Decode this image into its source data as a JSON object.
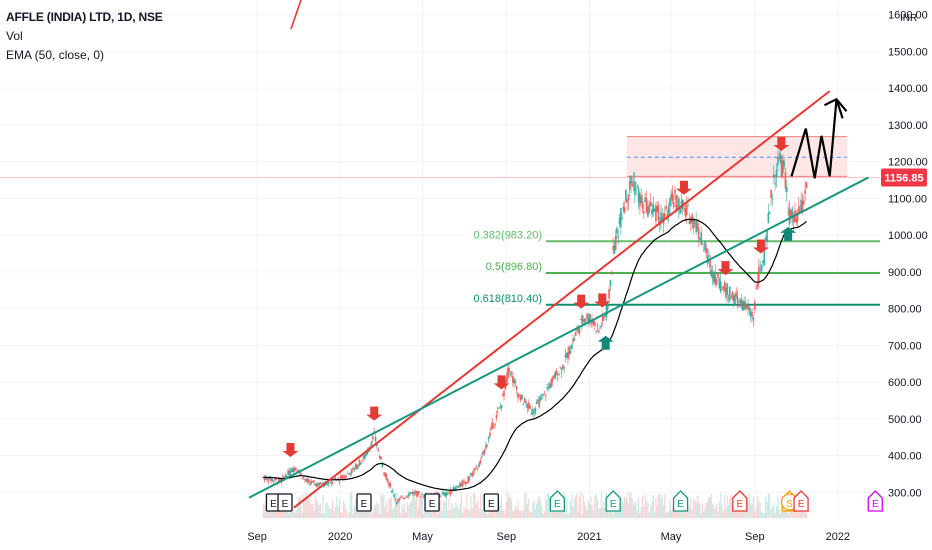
{
  "header": {
    "symbol_line": "AFFLE (INDIA) LTD, 1D, NSE",
    "vol_label": "Vol",
    "ema_label": "EMA (50, close, 0)"
  },
  "currency": "INR",
  "colors": {
    "background": "#ffffff",
    "grid": "#f0f3fa",
    "ema": "#000000",
    "trend_red": "#e53935",
    "trend_green": "#17977f",
    "candle_up": "#26a69a",
    "candle_down": "#ef5350",
    "price_tag": "#f23645",
    "fib_0382": "#66bb6a",
    "fib_05": "#4caf50",
    "fib_0618": "#0f8f6a",
    "zone_fill": "#fde6e6",
    "zone_border": "#f08080",
    "zone_mid": "#4e8ef7",
    "arrow_down": "#e53935",
    "arrow_up": "#10897a"
  },
  "chart_data": {
    "type": "candlestick",
    "x_tick_labels": [
      "Sep",
      "2020",
      "May",
      "Sep",
      "2021",
      "May",
      "Sep",
      "2022"
    ],
    "y_tick_labels": [
      "1600.00",
      "1500.00",
      "1400.00",
      "1300.00",
      "1200.00",
      "1100.00",
      "1000.00",
      "900.00",
      "800.00",
      "700.00",
      "600.00",
      "500.00",
      "400.00",
      "300.00"
    ],
    "y_ticks": [
      1600,
      1500,
      1400,
      1300,
      1200,
      1100,
      1000,
      900,
      800,
      700,
      600,
      500,
      400,
      300
    ],
    "ylim": [
      230,
      1640
    ],
    "last_price": 1156.85,
    "last_price_label": "1156.85",
    "ema_period": 50,
    "price_path": [
      [
        "2019-09-10",
        340
      ],
      [
        "2019-10-05",
        330
      ],
      [
        "2019-10-28",
        370
      ],
      [
        "2019-11-12",
        330
      ],
      [
        "2019-12-01",
        320
      ],
      [
        "2019-12-31",
        335
      ],
      [
        "2020-01-20",
        360
      ],
      [
        "2020-02-08",
        400
      ],
      [
        "2020-02-20",
        455
      ],
      [
        "2020-03-05",
        360
      ],
      [
        "2020-03-24",
        275
      ],
      [
        "2020-04-15",
        300
      ],
      [
        "2020-05-10",
        290
      ],
      [
        "2020-06-05",
        295
      ],
      [
        "2020-07-05",
        330
      ],
      [
        "2020-07-25",
        380
      ],
      [
        "2020-08-10",
        470
      ],
      [
        "2020-08-25",
        540
      ],
      [
        "2020-09-05",
        640
      ],
      [
        "2020-09-20",
        560
      ],
      [
        "2020-10-10",
        520
      ],
      [
        "2020-10-25",
        560
      ],
      [
        "2020-11-10",
        610
      ],
      [
        "2020-11-25",
        650
      ],
      [
        "2020-12-10",
        720
      ],
      [
        "2020-12-25",
        780
      ],
      [
        "2021-01-05",
        770
      ],
      [
        "2021-01-15",
        740
      ],
      [
        "2021-01-28",
        800
      ],
      [
        "2021-02-05",
        950
      ],
      [
        "2021-02-20",
        1080
      ],
      [
        "2021-03-05",
        1150
      ],
      [
        "2021-03-20",
        1080
      ],
      [
        "2021-04-05",
        1070
      ],
      [
        "2021-04-20",
        1040
      ],
      [
        "2021-05-05",
        1100
      ],
      [
        "2021-05-20",
        1070
      ],
      [
        "2021-06-05",
        1040
      ],
      [
        "2021-06-20",
        960
      ],
      [
        "2021-07-01",
        900
      ],
      [
        "2021-07-15",
        860
      ],
      [
        "2021-08-01",
        830
      ],
      [
        "2021-08-20",
        800
      ],
      [
        "2021-08-30",
        780
      ],
      [
        "2021-09-05",
        880
      ],
      [
        "2021-09-15",
        940
      ],
      [
        "2021-09-25",
        1100
      ],
      [
        "2021-10-05",
        1200
      ],
      [
        "2021-10-14",
        1180
      ],
      [
        "2021-10-22",
        1050
      ],
      [
        "2021-11-01",
        1040
      ],
      [
        "2021-11-10",
        1080
      ],
      [
        "2021-11-18",
        1157
      ]
    ],
    "annotations": {
      "fib_levels": [
        {
          "ratio": 0.382,
          "price": 983.2,
          "label": "0.382(983.20)"
        },
        {
          "ratio": 0.5,
          "price": 896.8,
          "label": "0.5(896.80)"
        },
        {
          "ratio": 0.618,
          "price": 810.4,
          "label": "0.618(810.40)"
        }
      ],
      "resistance_zone": {
        "from": "2021-02-25",
        "to": "2022-01-15",
        "top": 1268,
        "bottom": 1160,
        "mid": 1212
      },
      "trendlines": [
        {
          "color_key": "trend_red",
          "p1": [
            "2019-10-25",
            258
          ],
          "p2": [
            "2021-12-20",
            1392
          ]
        },
        {
          "color_key": "trend_green",
          "p1": [
            "2019-08-20",
            285
          ],
          "p2": [
            "2022-02-15",
            1157
          ]
        }
      ],
      "down_arrows": [
        "2019-10-20",
        "2020-02-20",
        "2020-08-25",
        "2020-12-20",
        "2021-01-20",
        "2021-05-20",
        "2021-07-20",
        "2021-09-10",
        "2021-10-10"
      ],
      "up_arrows": [
        "2021-01-25",
        "2021-10-20"
      ],
      "projection_path": [
        [
          "2021-10-25",
          1160
        ],
        [
          "2021-11-15",
          1290
        ],
        [
          "2021-11-28",
          1155
        ],
        [
          "2021-12-08",
          1270
        ],
        [
          "2021-12-20",
          1160
        ],
        [
          "2021-12-30",
          1370
        ],
        [
          "2022-01-08",
          1318
        ]
      ],
      "events": [
        {
          "date": "2019-09-25",
          "letter": "E",
          "style": "dark"
        },
        {
          "date": "2019-10-12",
          "letter": "E",
          "style": "dark"
        },
        {
          "date": "2020-02-05",
          "letter": "E",
          "style": "dark"
        },
        {
          "date": "2020-05-15",
          "letter": "E",
          "style": "dark"
        },
        {
          "date": "2020-08-10",
          "letter": "E",
          "style": "dark"
        },
        {
          "date": "2020-11-15",
          "letter": "E",
          "style": "green"
        },
        {
          "date": "2021-02-05",
          "letter": "E",
          "style": "green"
        },
        {
          "date": "2021-05-15",
          "letter": "E",
          "style": "green"
        },
        {
          "date": "2021-08-10",
          "letter": "E",
          "style": "red"
        },
        {
          "date": "2021-10-22",
          "letter": "S",
          "style": "orange"
        },
        {
          "date": "2021-11-08",
          "letter": "E",
          "style": "red"
        },
        {
          "date": "2022-02-25",
          "letter": "E",
          "style": "magenta"
        }
      ]
    }
  }
}
